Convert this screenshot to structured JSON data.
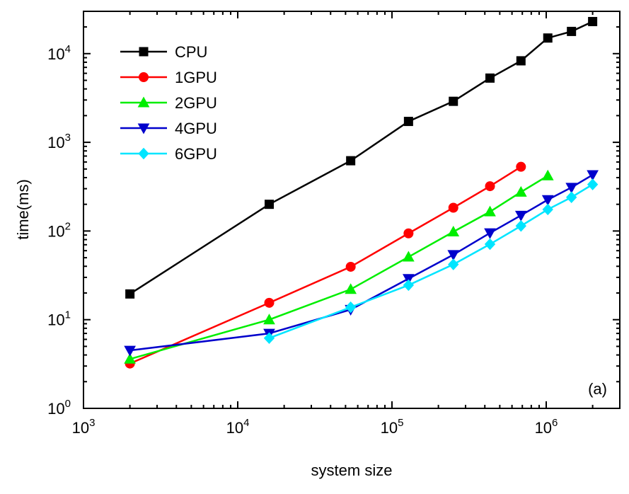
{
  "chart_data": {
    "type": "line",
    "xscale": "log",
    "yscale": "log",
    "xlim": [
      1000,
      3000000
    ],
    "ylim": [
      1,
      30000
    ],
    "xlabel": "system size",
    "ylabel": "time(ms)",
    "annotation": "(a)",
    "legend_position": "top-left",
    "grid": false,
    "x_ticks": [
      {
        "value": 1000,
        "base": "10",
        "exp": "3"
      },
      {
        "value": 10000,
        "base": "10",
        "exp": "4"
      },
      {
        "value": 100000,
        "base": "10",
        "exp": "5"
      },
      {
        "value": 1000000,
        "base": "10",
        "exp": "6"
      }
    ],
    "y_ticks": [
      {
        "value": 1,
        "base": "10",
        "exp": "0"
      },
      {
        "value": 10,
        "base": "10",
        "exp": "1"
      },
      {
        "value": 100,
        "base": "10",
        "exp": "2"
      },
      {
        "value": 1000,
        "base": "10",
        "exp": "3"
      },
      {
        "value": 10000,
        "base": "10",
        "exp": "4"
      }
    ],
    "series": [
      {
        "name": "CPU",
        "color": "#000000",
        "marker": "square",
        "x": [
          2000,
          16000,
          54000,
          128000,
          250000,
          432000,
          686000,
          1024000,
          1458000,
          2000000
        ],
        "y": [
          19.5,
          200,
          620,
          1720,
          2900,
          5300,
          8300,
          15000,
          17800,
          23000
        ]
      },
      {
        "name": "1GPU",
        "color": "#ff0000",
        "marker": "circle",
        "x": [
          2000,
          16000,
          54000,
          128000,
          250000,
          432000,
          686000
        ],
        "y": [
          3.2,
          15.5,
          39.5,
          94,
          183,
          320,
          530
        ]
      },
      {
        "name": "2GPU",
        "color": "#00ee00",
        "marker": "triangle-up",
        "x": [
          2000,
          16000,
          54000,
          128000,
          250000,
          432000,
          686000,
          1024000
        ],
        "y": [
          3.6,
          10,
          22,
          51,
          98,
          165,
          275,
          420
        ]
      },
      {
        "name": "4GPU",
        "color": "#0000cc",
        "marker": "triangle-down",
        "x": [
          2000,
          16000,
          54000,
          128000,
          250000,
          432000,
          686000,
          1024000,
          1458000,
          2000000
        ],
        "y": [
          4.5,
          7,
          13,
          29,
          54,
          95,
          150,
          225,
          310,
          430
        ]
      },
      {
        "name": "6GPU",
        "color": "#00e5ff",
        "marker": "diamond",
        "x": [
          16000,
          54000,
          128000,
          250000,
          432000,
          686000,
          1024000,
          1458000,
          2000000
        ],
        "y": [
          6.2,
          13.8,
          24.5,
          42,
          71,
          114,
          175,
          240,
          335
        ]
      }
    ]
  }
}
